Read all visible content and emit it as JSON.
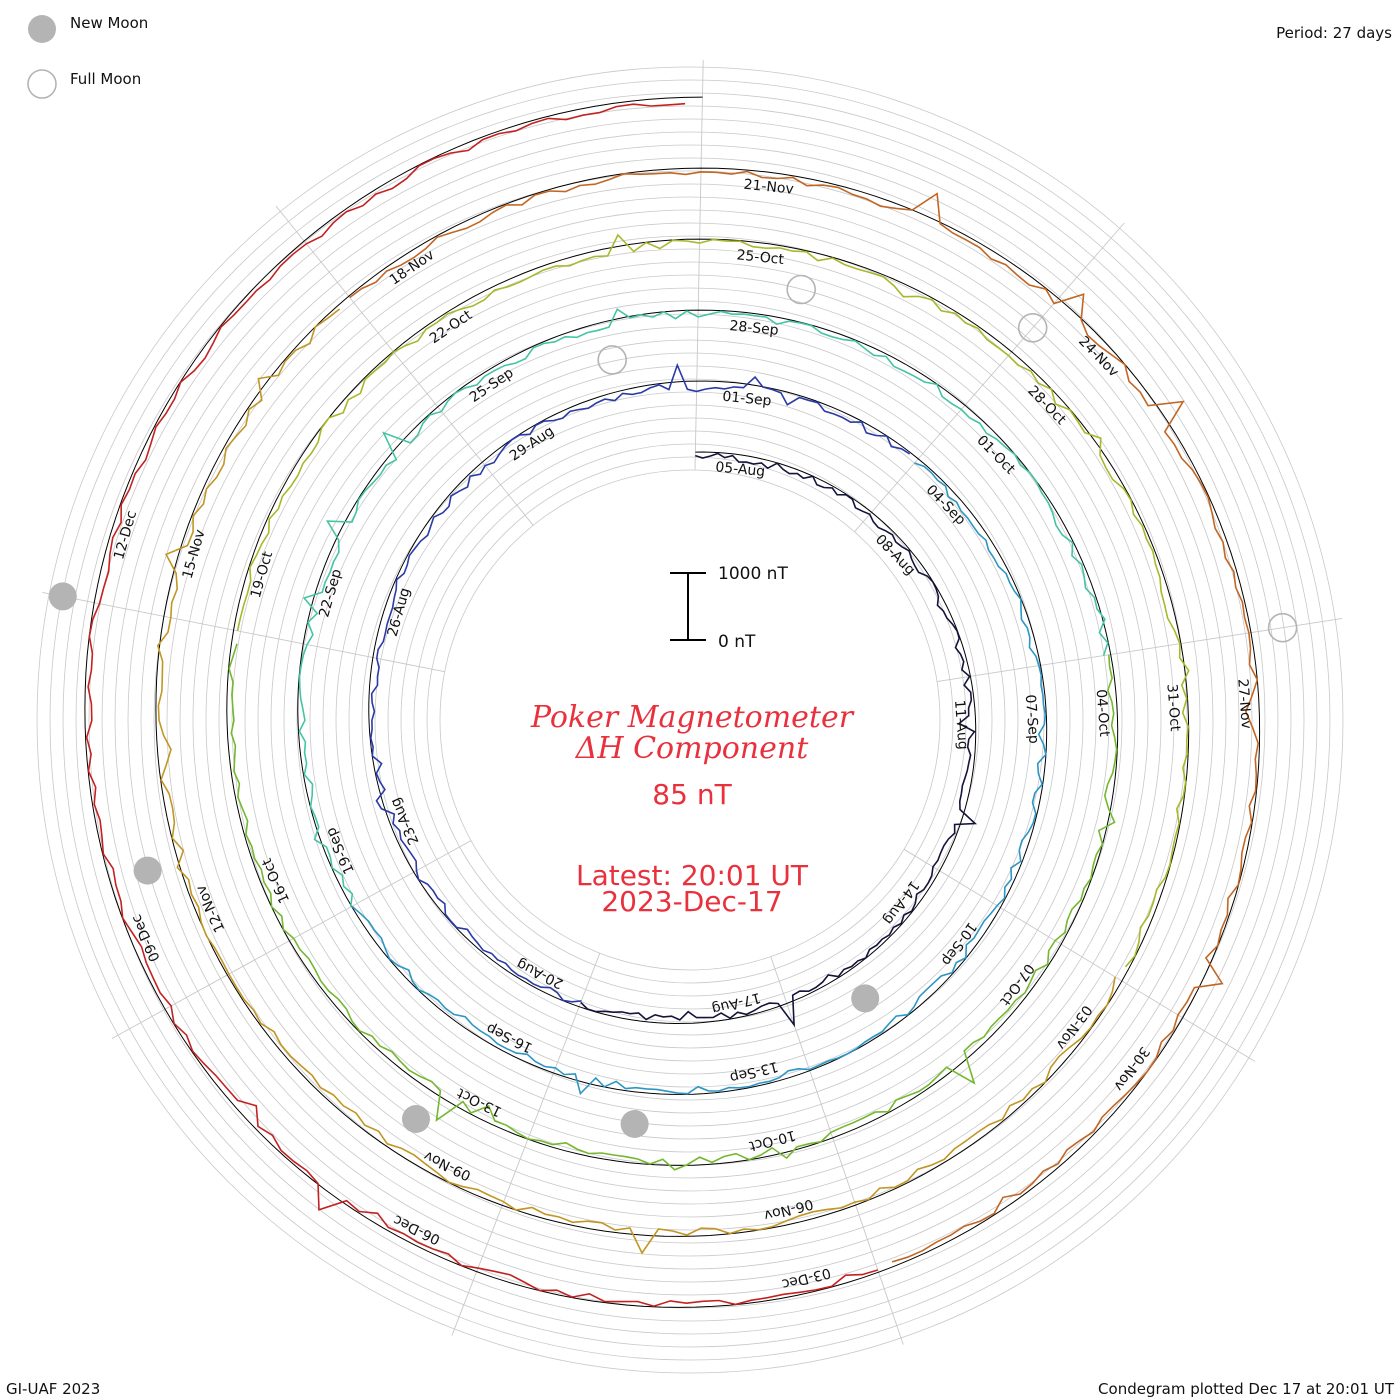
{
  "header": {
    "period_label": "Period: 27 days",
    "legend_new_moon": "New Moon",
    "legend_full_moon": "Full Moon"
  },
  "footer": {
    "credit": "GI-UAF 2023",
    "plotted": "Condegram plotted Dec 17 at 20:01 UT"
  },
  "center": {
    "title_line1": "Poker Magnetometer",
    "title_line2": "ΔH Component",
    "current_value": "85 nT",
    "latest": "Latest: 20:01 UT",
    "date": "2023-Dec-17"
  },
  "scale_bar": {
    "top_label": "1000 nT",
    "bottom_label": "0 nT"
  },
  "colors": {
    "title": "#e8313d",
    "grid": "#c8c8c8",
    "baseline": "#000000",
    "moon": "#b4b4b4",
    "rings": [
      "#14143c",
      "#2a3aa8",
      "#2e96c4",
      "#45c4a4",
      "#73b82e",
      "#a8b82a",
      "#c29624",
      "#c26624",
      "#c42222"
    ]
  },
  "chart_data": {
    "type": "line",
    "title": "Poker Magnetometer ΔH Component",
    "period_days": 27,
    "units": "nT",
    "rings": [
      {
        "start": "05-Aug",
        "labels": [
          "05-Aug",
          "08-Aug",
          "11-Aug",
          "14-Aug",
          "17-Aug",
          "20-Aug",
          "23-Aug",
          "26-Aug",
          "29-Aug"
        ]
      },
      {
        "start": "01-Sep",
        "labels": [
          "01-Sep",
          "04-Sep",
          "07-Sep",
          "10-Sep",
          "13-Sep",
          "16-Sep",
          "19-Sep",
          "22-Sep",
          "25-Sep"
        ]
      },
      {
        "start": "28-Sep",
        "labels": [
          "28-Sep",
          "01-Oct",
          "04-Oct",
          "07-Oct",
          "10-Oct",
          "13-Oct",
          "16-Oct",
          "19-Oct",
          "22-Oct"
        ]
      },
      {
        "start": "25-Oct",
        "labels": [
          "25-Oct",
          "28-Oct",
          "31-Oct",
          "03-Nov",
          "06-Nov",
          "09-Nov",
          "12-Nov",
          "15-Nov",
          "18-Nov"
        ]
      },
      {
        "start": "21-Nov",
        "labels": [
          "21-Nov",
          "24-Nov",
          "27-Nov",
          "30-Nov",
          "03-Dec",
          "06-Dec",
          "09-Dec",
          "12-Dec"
        ]
      }
    ],
    "moon_phases": {
      "new_moon": [
        "16-Aug",
        "15-Sep",
        "14-Oct",
        "13-Nov",
        "12-Dec"
      ],
      "full_moon": [
        "31-Aug",
        "29-Sep",
        "28-Oct",
        "27-Nov"
      ]
    },
    "latest_value_nT": 85,
    "scale_bar_nT": [
      0,
      1000
    ]
  }
}
